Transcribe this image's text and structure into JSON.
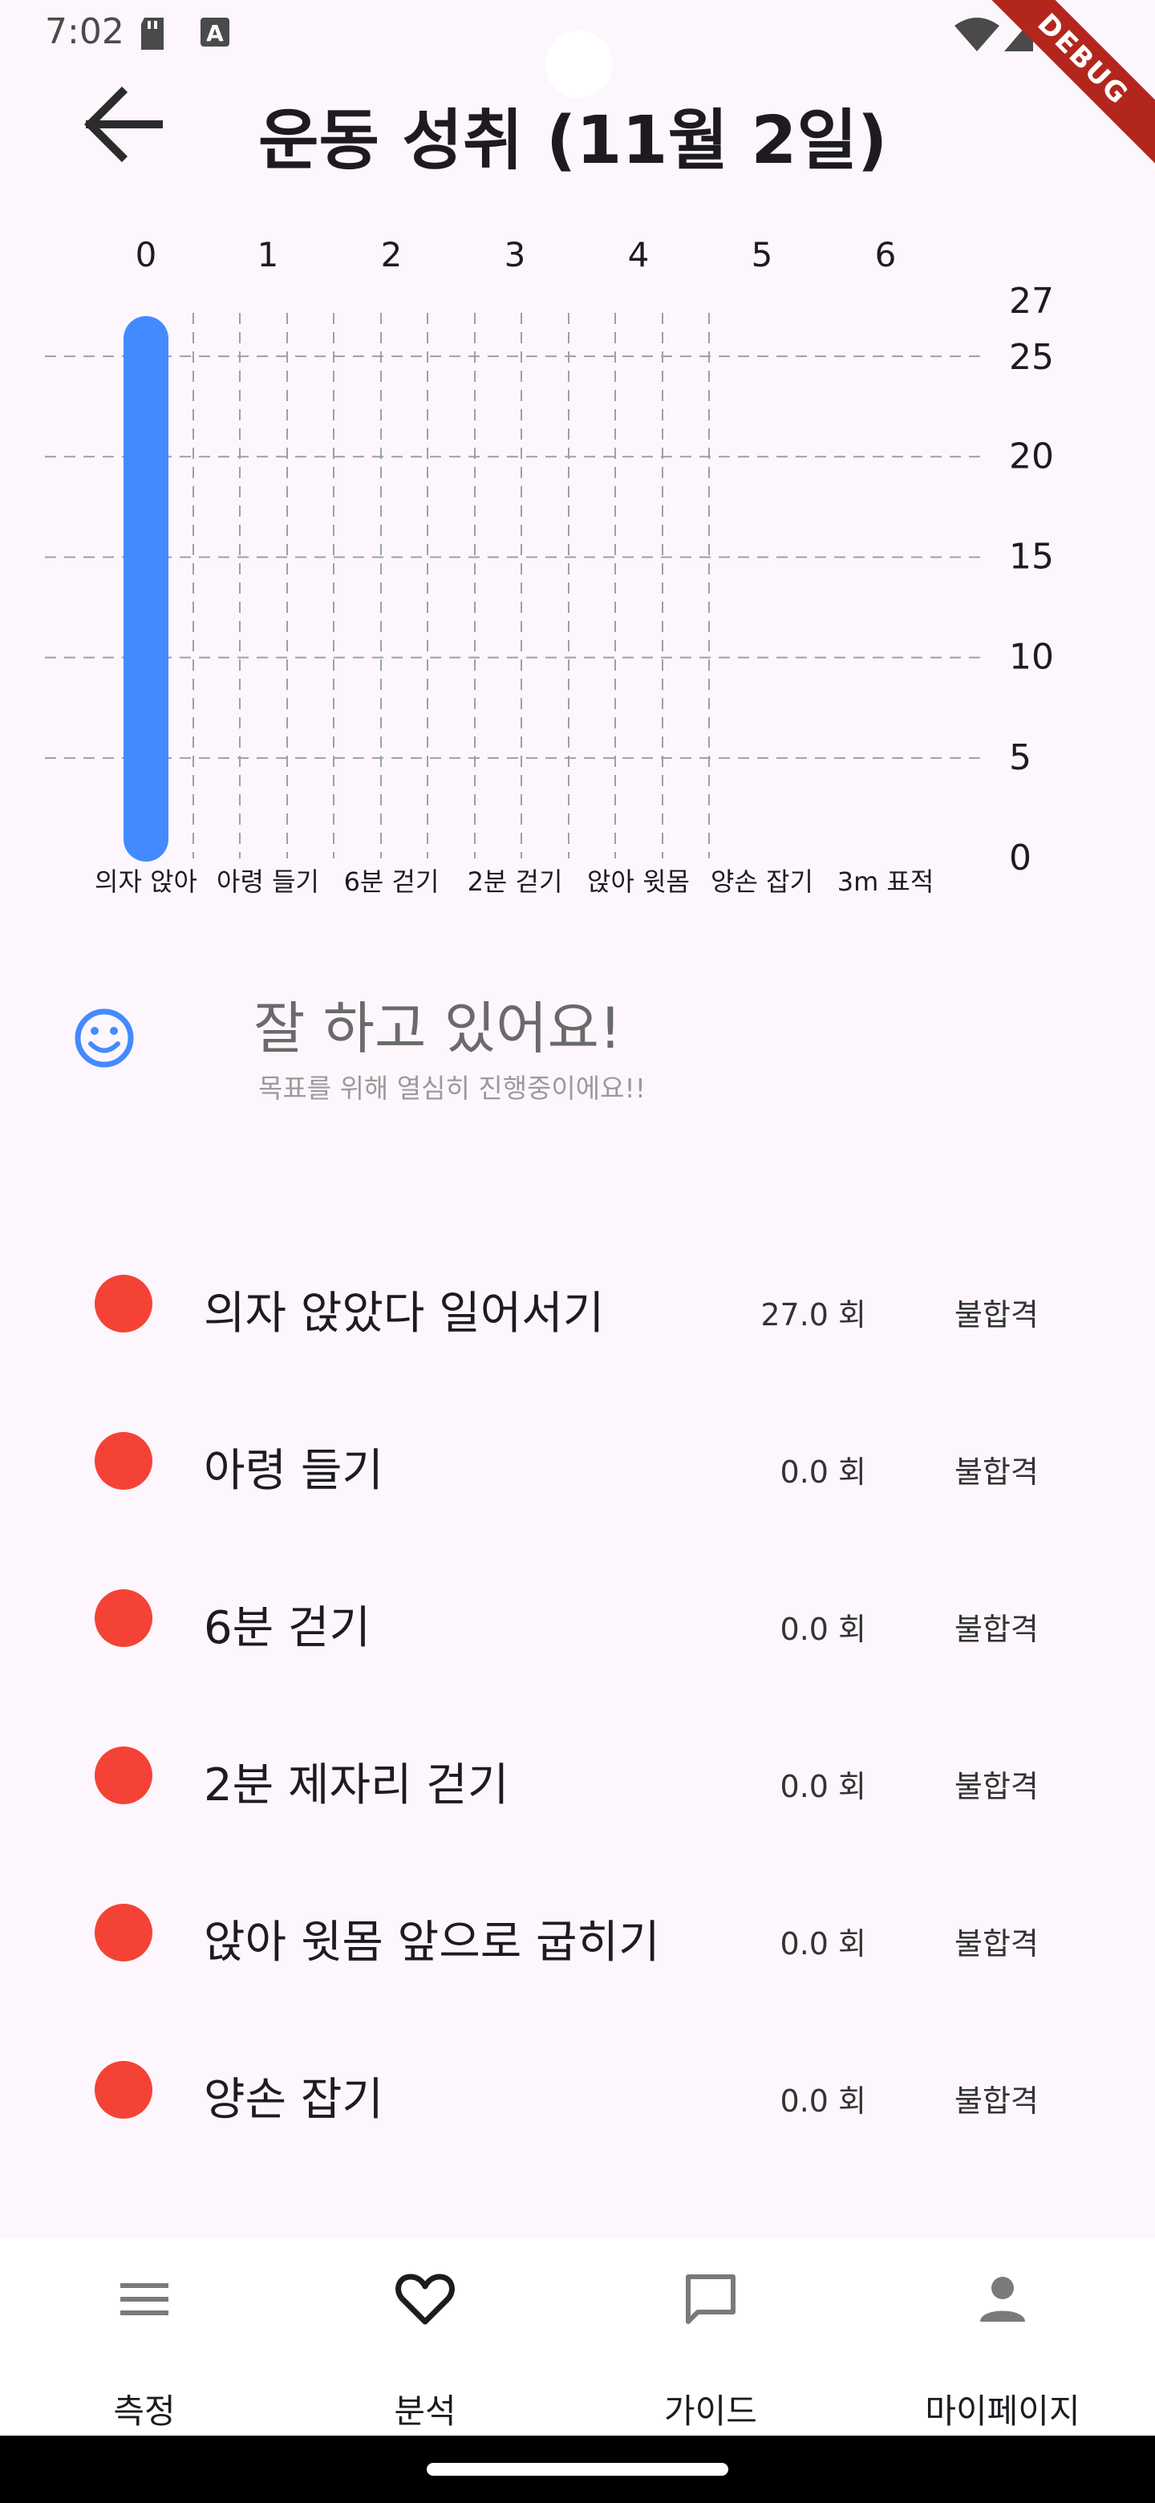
{
  "status_bar": {
    "time": "7:02"
  },
  "debug_banner": "DEBUG",
  "app_bar": {
    "title": "운동 성취 (11월 2일)"
  },
  "chart_data": {
    "type": "bar",
    "top_ticks": [
      "0",
      "1",
      "2",
      "3",
      "4",
      "5",
      "6"
    ],
    "categories": [
      "의자 앉아",
      "아령 들기",
      "6분 걷기",
      "2분 걷기",
      "앉아 윗몸",
      "양손 잡기",
      "3m 표적"
    ],
    "values": [
      27,
      0,
      0,
      0,
      0,
      0,
      0
    ],
    "y_ticks": [
      "0",
      "5",
      "10",
      "15",
      "20",
      "25",
      "27"
    ],
    "ylim": [
      0,
      27
    ],
    "grid": true,
    "colors": {
      "bar": "#448aff",
      "grid": "#9aa2a0"
    }
  },
  "feedback": {
    "icon": "smile-icon",
    "title": "잘 하고 있어요!",
    "subtitle": "목표를 위해 열심히 진행중이에요!!"
  },
  "exercises": [
    {
      "name": "의자 앉았다 일어서기",
      "count": "27.0 회",
      "result": "불합격"
    },
    {
      "name": "아령 들기",
      "count": "0.0 회",
      "result": "불합격"
    },
    {
      "name": "6분 걷기",
      "count": "0.0 회",
      "result": "불합격"
    },
    {
      "name": "2분 제자리 걷기",
      "count": "0.0 회",
      "result": "불합격"
    },
    {
      "name": "앉아 윗몸 앞으로 굽히기",
      "count": "0.0 회",
      "result": "불합격"
    },
    {
      "name": "양손 잡기",
      "count": "0.0 회",
      "result": "불합격"
    }
  ],
  "status_color": "#f44336",
  "bottom_nav": [
    {
      "label": "측정",
      "icon": "menu-icon"
    },
    {
      "label": "분석",
      "icon": "heart-icon"
    },
    {
      "label": "가이드",
      "icon": "chat-icon"
    },
    {
      "label": "마이페이지",
      "icon": "person-icon"
    }
  ]
}
